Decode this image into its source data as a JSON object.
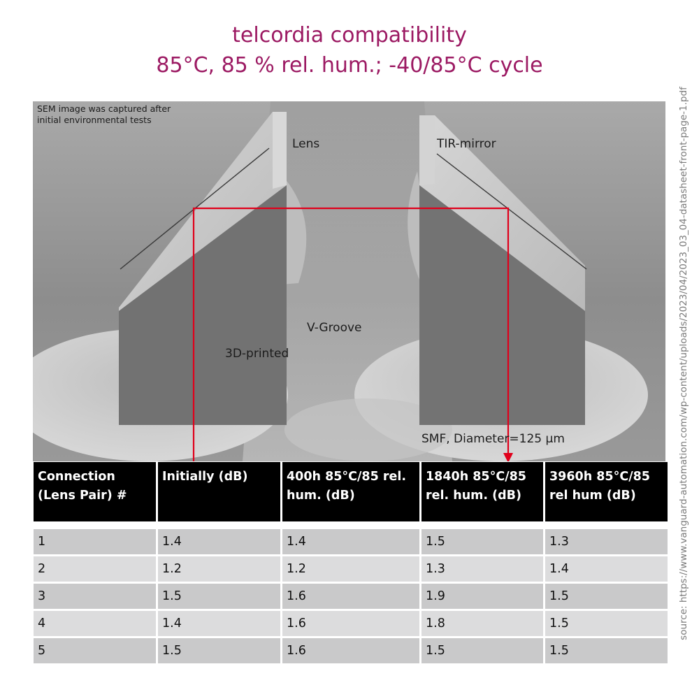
{
  "title": {
    "line1": "telcordia compatibility",
    "line2": "85°C, 85 % rel. hum.; -40/85°C cycle"
  },
  "source": "source: https://www.vanguard-automation.com/wp-content/uploads/2023/04/2023_03_04-datasheet-front-page-1.pdf",
  "image": {
    "note": "SEM image was captured after initial environmental tests",
    "labels": {
      "lens": "Lens",
      "tir_mirror": "TIR-mirror",
      "v_groove": "V-Groove",
      "printed": "3D-printed",
      "smf": "SMF, Diameter=125 µm"
    },
    "colors": {
      "beam": "#e0001b"
    }
  },
  "table": {
    "headers": [
      [
        "Connection",
        "(Lens Pair) #"
      ],
      [
        "Initially  (dB)"
      ],
      [
        "400h 85°C/85 rel.",
        "hum. (dB)"
      ],
      [
        "1840h 85°C/85",
        "rel. hum. (dB)"
      ],
      [
        "3960h 85°C/85",
        "rel hum (dB)"
      ]
    ],
    "rows": [
      [
        "1",
        "1.4",
        "1.4",
        "1.5",
        "1.3"
      ],
      [
        "2",
        "1.2",
        "1.2",
        "1.3",
        "1.4"
      ],
      [
        "3",
        "1.5",
        "1.6",
        "1.9",
        "1.5"
      ],
      [
        "4",
        "1.4",
        "1.6",
        "1.8",
        "1.5"
      ],
      [
        "5",
        "1.5",
        "1.6",
        "1.5",
        "1.5"
      ]
    ]
  },
  "colors": {
    "title": "#9c1a63",
    "header_bg": "#000000"
  }
}
